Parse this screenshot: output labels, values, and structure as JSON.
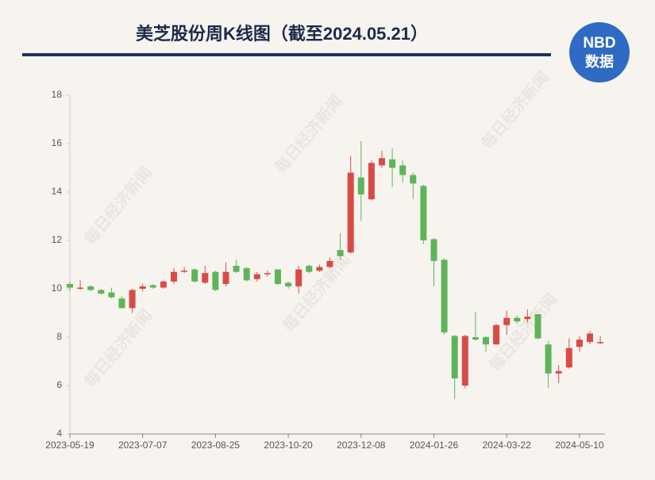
{
  "chart_data": {
    "type": "candlestick",
    "title": "美芝股份周K线图（截至2024.05.21）",
    "logo_top": "NBD",
    "logo_bottom": "数据",
    "watermark": "每日经济新闻",
    "categories": [
      "2023-05-19",
      null,
      null,
      null,
      null,
      null,
      null,
      "2023-07-07",
      null,
      null,
      null,
      null,
      null,
      null,
      "2023-08-25",
      null,
      null,
      null,
      null,
      null,
      null,
      "2023-10-20",
      null,
      null,
      null,
      null,
      null,
      null,
      "2023-12-08",
      null,
      null,
      null,
      null,
      null,
      null,
      "2024-01-26",
      null,
      null,
      null,
      null,
      null,
      null,
      "2024-03-22",
      null,
      null,
      null,
      null,
      null,
      null,
      "2024-05-10",
      null,
      null
    ],
    "open": [
      10.2,
      10.0,
      10.1,
      9.95,
      9.85,
      9.6,
      9.2,
      10.0,
      10.15,
      10.05,
      10.3,
      10.7,
      10.8,
      10.25,
      10.7,
      10.2,
      10.95,
      10.85,
      10.4,
      10.6,
      10.8,
      10.25,
      10.1,
      10.95,
      10.75,
      10.9,
      11.6,
      11.5,
      14.6,
      13.7,
      15.1,
      15.35,
      15.1,
      14.7,
      14.25,
      12.05,
      11.2,
      8.05,
      6.0,
      8.0,
      8.0,
      7.7,
      8.5,
      8.8,
      8.75,
      8.95,
      7.7,
      6.5,
      6.75,
      7.6,
      7.8,
      7.75
    ],
    "high": [
      10.3,
      10.35,
      10.15,
      10.0,
      10.05,
      9.7,
      10.0,
      10.2,
      10.2,
      10.35,
      10.85,
      10.9,
      10.85,
      10.95,
      10.75,
      11.1,
      11.2,
      10.9,
      10.7,
      10.75,
      10.8,
      10.3,
      10.95,
      11.0,
      11.0,
      11.3,
      12.3,
      15.5,
      16.1,
      15.3,
      15.7,
      15.8,
      15.3,
      14.8,
      14.3,
      12.1,
      11.25,
      8.1,
      8.1,
      9.05,
      8.05,
      8.55,
      9.1,
      8.9,
      9.15,
      8.95,
      7.85,
      6.85,
      7.95,
      8.05,
      8.25,
      8.05
    ],
    "low": [
      9.9,
      9.95,
      9.9,
      9.75,
      9.6,
      9.2,
      9.0,
      9.9,
      10.0,
      10.0,
      10.2,
      10.65,
      10.25,
      10.2,
      9.9,
      10.1,
      10.65,
      10.3,
      10.3,
      10.5,
      10.15,
      10.0,
      9.8,
      10.65,
      10.7,
      10.85,
      11.2,
      11.45,
      12.8,
      13.65,
      15.0,
      14.2,
      14.4,
      13.7,
      11.85,
      10.1,
      8.1,
      5.45,
      5.9,
      7.85,
      7.4,
      7.7,
      8.1,
      8.55,
      8.6,
      7.9,
      5.9,
      6.1,
      6.7,
      7.4,
      7.7,
      7.7
    ],
    "close": [
      10.05,
      10.05,
      9.95,
      9.8,
      9.65,
      9.2,
      9.95,
      10.1,
      10.05,
      10.3,
      10.7,
      10.75,
      10.3,
      10.65,
      9.95,
      10.7,
      10.7,
      10.35,
      10.6,
      10.65,
      10.2,
      10.1,
      10.8,
      10.7,
      10.9,
      11.15,
      11.35,
      14.8,
      13.9,
      15.2,
      15.4,
      15.0,
      14.7,
      14.35,
      12.0,
      11.15,
      8.2,
      6.3,
      8.05,
      7.9,
      7.7,
      8.5,
      8.8,
      8.65,
      8.85,
      7.95,
      6.5,
      6.6,
      7.55,
      7.9,
      8.15,
      7.8
    ],
    "up_color": "#d94b45",
    "down_color": "#5fb45a",
    "ylim": [
      4,
      18
    ],
    "yticks": [
      4,
      6,
      8,
      10,
      12,
      14,
      16,
      18
    ],
    "grid": false
  }
}
